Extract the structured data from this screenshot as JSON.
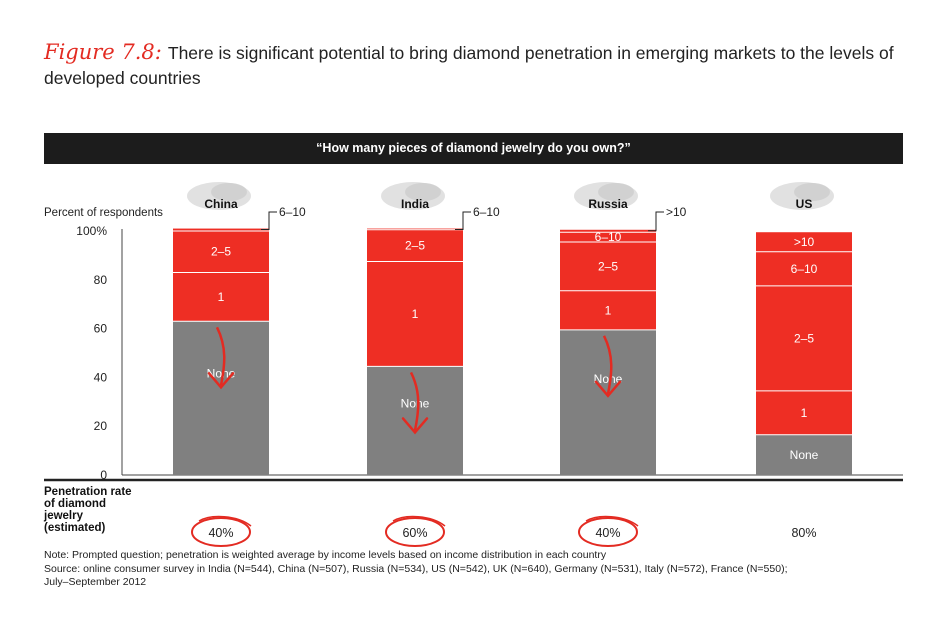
{
  "header": {
    "figure_label": "Figure 7.8:",
    "title": "There is significant potential to bring diamond penetration in emerging markets to the levels of developed countries"
  },
  "chart_data": {
    "type": "bar",
    "stacked": true,
    "question": "“How many pieces of diamond jewelry do you own?”",
    "ylabel": "Percent of respondents",
    "ylim": [
      0,
      100
    ],
    "y_ticks": [
      "0",
      "20",
      "40",
      "60",
      "80",
      "100%"
    ],
    "categories": [
      "China",
      "India",
      "Russia",
      "US"
    ],
    "series": [
      {
        "name": "None",
        "values": [
          63,
          44.5,
          59.5,
          16.5
        ],
        "color": "#808080"
      },
      {
        "name": "1",
        "values": [
          20,
          43,
          16,
          18
        ],
        "color": "#ee2e24"
      },
      {
        "name": "2–5",
        "values": [
          17,
          13,
          20,
          43
        ],
        "color": "#ee2e24"
      },
      {
        "name": "6–10",
        "values": [
          1,
          0.5,
          4,
          14
        ],
        "color": "#ee2e24"
      },
      {
        "name": ">10",
        "values": [
          0,
          0,
          1,
          8
        ],
        "color": "#ee2e24"
      }
    ],
    "callouts": [
      "6–10",
      "6–10",
      ">10",
      ""
    ],
    "penetration_label": "Penetration rate of diamond jewelry (estimated)",
    "penetration_label_lines": [
      "Penetration rate",
      "of diamond",
      "jewelry",
      "(estimated)"
    ],
    "penetration_rates": [
      "40%",
      "60%",
      "40%",
      "80%"
    ],
    "circled": [
      true,
      true,
      true,
      false
    ]
  },
  "notes": {
    "note": "Note: Prompted question; penetration is weighted average by income levels based on income distribution in each country",
    "source": "Source: online consumer survey in India (N=544), China (N=507), Russia (N=534), US (N=542), UK (N=640), Germany (N=531), Italy (N=572), France (N=550);",
    "period": "July–September 2012"
  },
  "colors": {
    "accent": "#e32b22",
    "gray": "#808080",
    "red": "#ee2e24",
    "dark": "#1c1c1c"
  }
}
